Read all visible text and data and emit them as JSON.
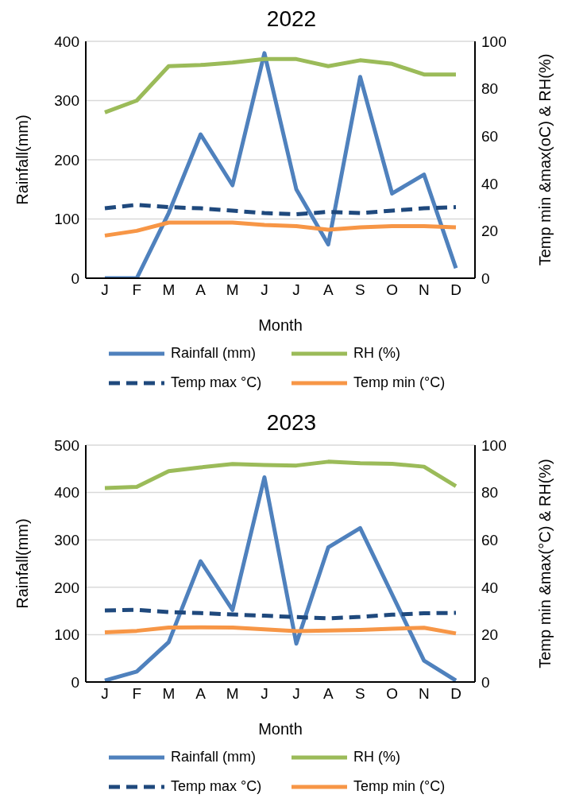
{
  "chart_data": [
    {
      "type": "line",
      "title": "2022",
      "xlabel": "Month",
      "ylabel": "Rainfall(mm)",
      "y2label": "Temp min &max(oC) & RH(%)",
      "categories": [
        "J",
        "F",
        "M",
        "A",
        "M",
        "J",
        "J",
        "A",
        "S",
        "O",
        "N",
        "D"
      ],
      "series": [
        {
          "name": "Rainfall (mm)",
          "color": "#4f81bd",
          "values": [
            0,
            0,
            110,
            243,
            157,
            380,
            150,
            57,
            340,
            143,
            175,
            17
          ]
        },
        {
          "name": "RH (%)",
          "color": "#9bbb59",
          "axis": "y2",
          "values": [
            70,
            75,
            89.5,
            90,
            91,
            92.5,
            92.5,
            89.5,
            92,
            90.5,
            86,
            86
          ]
        },
        {
          "name": "Temp max °C)",
          "color": "#1f497d",
          "axis": "y2",
          "line_style": "dashed",
          "values": [
            29.5,
            31,
            30,
            29.5,
            28.5,
            27.5,
            27,
            28,
            27.5,
            28.5,
            29.5,
            30
          ]
        },
        {
          "name": "Temp min (°C)",
          "color": "#f79646",
          "axis": "y2",
          "values": [
            18,
            20,
            23.5,
            23.5,
            23.5,
            22.5,
            22,
            20.5,
            21.5,
            22,
            22,
            21.5
          ]
        }
      ],
      "ylim": [
        0,
        400
      ],
      "yticks": [
        0,
        100,
        200,
        300,
        400
      ],
      "y2lim": [
        0,
        100
      ],
      "y2ticks": [
        0,
        20,
        40,
        60,
        80,
        100
      ],
      "grid": "y",
      "legend": "bottom",
      "marker": "none",
      "line_style": "solid"
    },
    {
      "type": "line",
      "title": "2023",
      "xlabel": "Month",
      "ylabel": "Rainfall(mm)",
      "y2label": "Temp min &max(°C) & RH(%)",
      "categories": [
        "J",
        "F",
        "M",
        "A",
        "M",
        "J",
        "J",
        "A",
        "S",
        "O",
        "N",
        "D"
      ],
      "series": [
        {
          "name": "Rainfall (mm)",
          "color": "#4f81bd",
          "values": [
            3,
            22,
            84,
            255,
            152,
            432,
            81,
            284,
            325,
            185,
            45,
            3
          ]
        },
        {
          "name": "RH (%)",
          "color": "#9bbb59",
          "axis": "y2",
          "values": [
            81.9,
            82.4,
            89,
            90.6,
            92,
            91.6,
            91.4,
            93,
            92.4,
            92.1,
            90.9,
            82.7
          ]
        },
        {
          "name": "Temp max °C)",
          "color": "#1f497d",
          "axis": "y2",
          "line_style": "dashed",
          "values": [
            30.2,
            30.5,
            29.5,
            29.1,
            28.5,
            28,
            27.4,
            26.9,
            27.5,
            28.4,
            29,
            29.2
          ]
        },
        {
          "name": "Temp min (°C)",
          "color": "#f79646",
          "axis": "y2",
          "values": [
            21,
            21.6,
            23,
            23.1,
            23,
            22.2,
            21.5,
            21.7,
            22,
            22.5,
            22.9,
            20.5
          ]
        }
      ],
      "ylim": [
        0,
        500
      ],
      "yticks": [
        0,
        100,
        200,
        300,
        400,
        500
      ],
      "y2lim": [
        0,
        100
      ],
      "y2ticks": [
        0,
        20,
        40,
        60,
        80,
        100
      ],
      "grid": "y",
      "legend": "bottom",
      "marker": "none",
      "line_style": "solid"
    }
  ]
}
